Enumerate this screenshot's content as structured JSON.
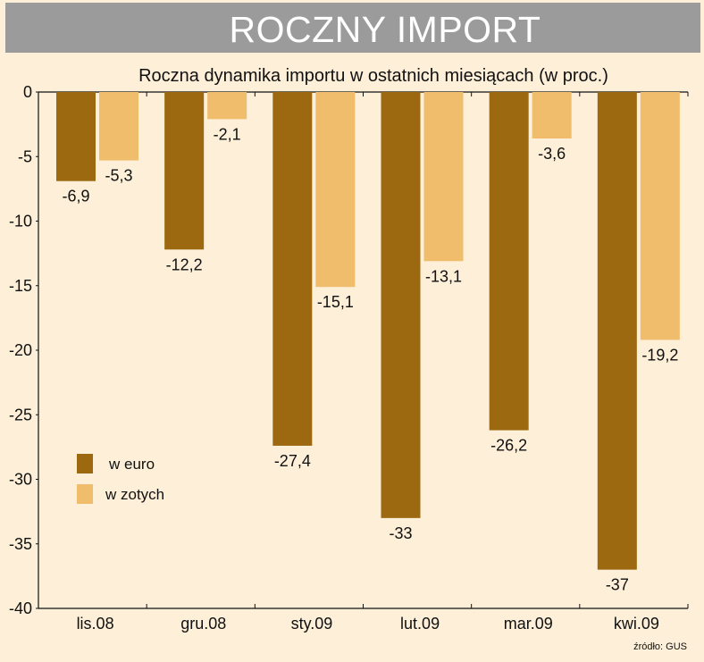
{
  "banner": {
    "title": "ROCZNY IMPORT"
  },
  "colors": {
    "background": "#fdefd8",
    "banner": "#9b9b9b",
    "euro": "#9c6810",
    "zloty": "#f0bd6c"
  },
  "chart_data": {
    "type": "bar",
    "title": "Roczna dynamika importu w ostatnich miesiącach (w proc.)",
    "categories": [
      "lis.08",
      "gru.08",
      "sty.09",
      "lut.09",
      "mar.09",
      "kwi.09"
    ],
    "series": [
      {
        "name": "w euro",
        "values": [
          -6.9,
          -12.2,
          -27.4,
          -33,
          -26.2,
          -37
        ],
        "labels": [
          "-6,9",
          "-12,2",
          "-27,4",
          "-33",
          "-26,2",
          "-37"
        ]
      },
      {
        "name": "w zotych",
        "values": [
          -5.3,
          -2.1,
          -15.1,
          -13.1,
          -3.6,
          -19.2
        ],
        "labels": [
          "-5,3",
          "-2,1",
          "-15,1",
          "-13,1",
          "-3,6",
          "-19,2"
        ]
      }
    ],
    "ylim": [
      -40,
      0
    ],
    "yticks": [
      "0",
      "-5",
      "-10",
      "-15",
      "-20",
      "-25",
      "-30",
      "-35",
      "-40"
    ],
    "legend": "left",
    "grid": false,
    "source": "źródło: GUS"
  }
}
